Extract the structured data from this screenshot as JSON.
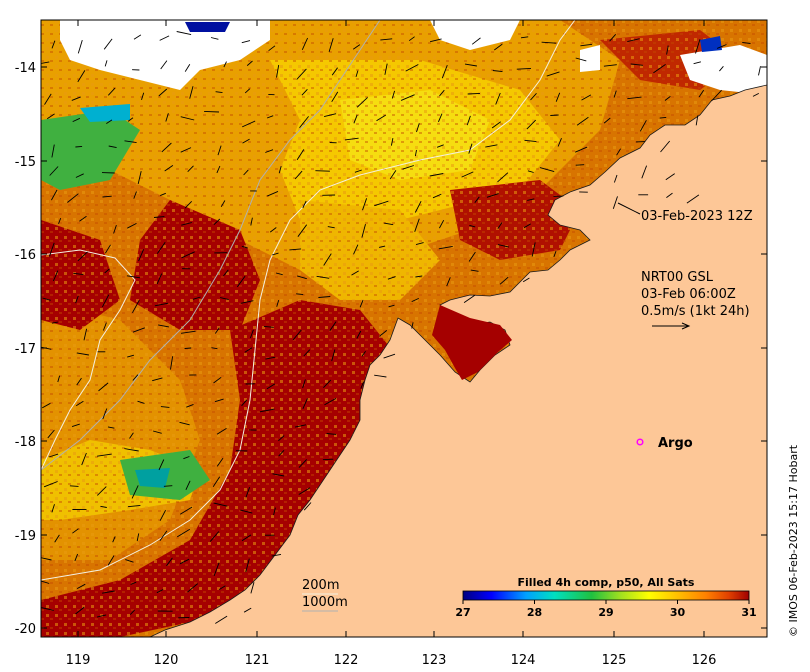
{
  "map": {
    "x_ticks": [
      "119",
      "120",
      "121",
      "122",
      "123",
      "124",
      "125",
      "126"
    ],
    "y_ticks": [
      "-14",
      "-15",
      "-16",
      "-17",
      "-18",
      "-19",
      "-20"
    ],
    "timestamp_label": "03-Feb-2023 12Z",
    "current_info": {
      "line1": "NRT00 GSL",
      "line2": "03-Feb 06:00Z",
      "line3": "0.5m/s (1kt 24h)"
    },
    "argo_label": "Argo",
    "contours": {
      "shallow": "200m",
      "deep": "1000m"
    },
    "colorbar": {
      "title": "Filled 4h comp, p50, All Sats",
      "tick_labels": [
        "27",
        "28",
        "29",
        "30",
        "31"
      ],
      "colors": [
        "#00007f",
        "#0000ff",
        "#00a0ff",
        "#00e0c0",
        "#20c040",
        "#a0e020",
        "#ffff00",
        "#ffc000",
        "#ff8000",
        "#e04000",
        "#a00000"
      ]
    },
    "credit": "© IMOS 06-Feb-2023 15:17 Hobart",
    "colors": {
      "land": "#fdc797",
      "sst_hot": "#a50000",
      "sst_warm": "#d86a00",
      "sst_mid": "#f0b400",
      "sst_cool": "#40b040",
      "argo": "#ff00ff"
    }
  }
}
